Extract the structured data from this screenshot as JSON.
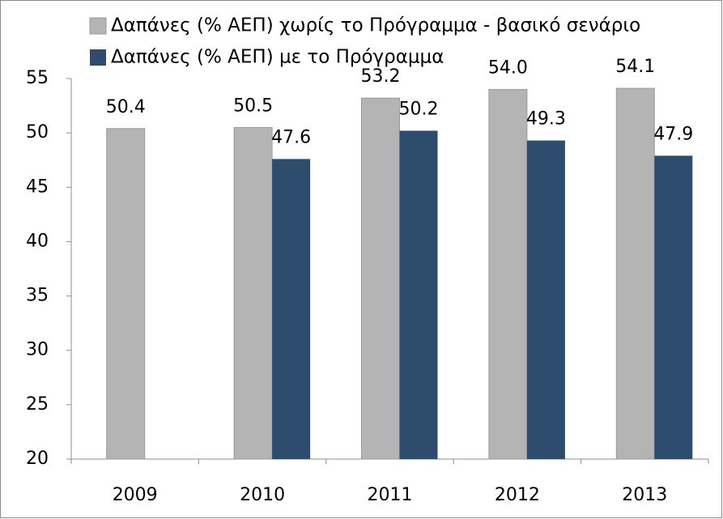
{
  "chart_data": {
    "type": "bar",
    "categories": [
      "2009",
      "2010",
      "2011",
      "2012",
      "2013"
    ],
    "series": [
      {
        "name": "Δαπάνες (% ΑΕΠ) χωρίς το Πρόγραμμα - βασικό σενάριο",
        "color": "#b4b4b4",
        "values": [
          50.4,
          50.5,
          53.2,
          54.0,
          54.1
        ],
        "value_labels": [
          "50.4",
          "50.5",
          "53.2",
          "54.0",
          "54.1"
        ]
      },
      {
        "name": "Δαπάνες (% ΑΕΠ) με το Πρόγραμμα",
        "color": "#2e4d6e",
        "values": [
          null,
          47.6,
          50.2,
          49.3,
          47.9
        ],
        "value_labels": [
          null,
          "47.6",
          "50.2",
          "49.3",
          "47.9"
        ]
      }
    ],
    "ylim": [
      20,
      55
    ],
    "yticks": [
      20,
      25,
      30,
      35,
      40,
      45,
      50,
      55
    ],
    "grid": false
  }
}
